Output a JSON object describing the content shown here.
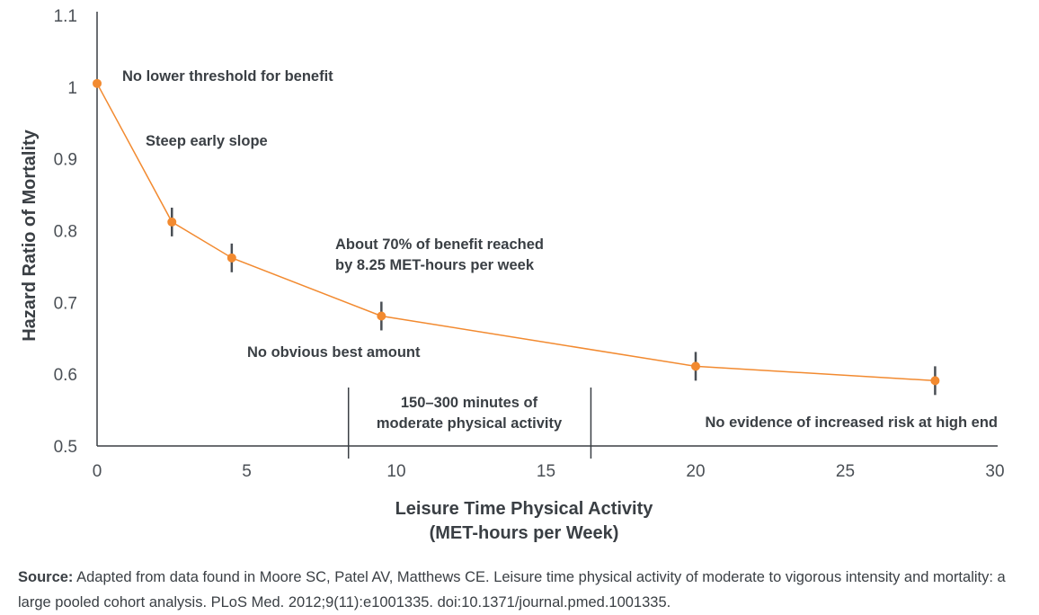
{
  "chart_data": {
    "type": "line",
    "x": [
      0,
      2.5,
      4.5,
      9.5,
      20,
      28
    ],
    "series": [
      {
        "values": [
          1.005,
          0.812,
          0.762,
          0.681,
          0.611,
          0.591
        ]
      }
    ],
    "xlabel_line1": "Leisure Time Physical Activity",
    "xlabel_line2": "(MET-hours per Week)",
    "ylabel": "Hazard Ratio of Mortality",
    "xlim": [
      0,
      30
    ],
    "ylim": [
      0.5,
      1.1
    ],
    "x_ticks": [
      "0",
      "5",
      "10",
      "15",
      "20",
      "25",
      "30"
    ],
    "y_ticks": [
      "0.5",
      "0.6",
      "0.7",
      "0.8",
      "0.9",
      "1",
      "1.1"
    ],
    "error_bars": [
      null,
      0.02,
      0.02,
      0.02,
      0.02,
      0.02
    ],
    "reference_lines_x": [
      8.4,
      16.5
    ],
    "grid": false,
    "line_color": "#f28a30",
    "errorbar_color": "#4a4f55",
    "annotations": {
      "no_lower_threshold": "No lower threshold for benefit",
      "steep_slope": "Steep early slope",
      "benefit_line1": "About 70% of benefit reached",
      "benefit_line2": "by 8.25 MET-hours per week",
      "no_best": "No obvious best amount",
      "minutes_line1": "150–300 minutes of",
      "minutes_line2": "moderate physical activity",
      "no_evidence": "No evidence of increased risk at high end"
    }
  },
  "source": {
    "label": "Source:",
    "text": " Adapted from data found in Moore SC, Patel AV, Matthews CE. Leisure time physical activity of moderate to vigorous intensity and mortality: a large pooled cohort analysis. PLoS Med. 2012;9(11):e1001335. doi:10.1371/journal.pmed.1001335."
  }
}
